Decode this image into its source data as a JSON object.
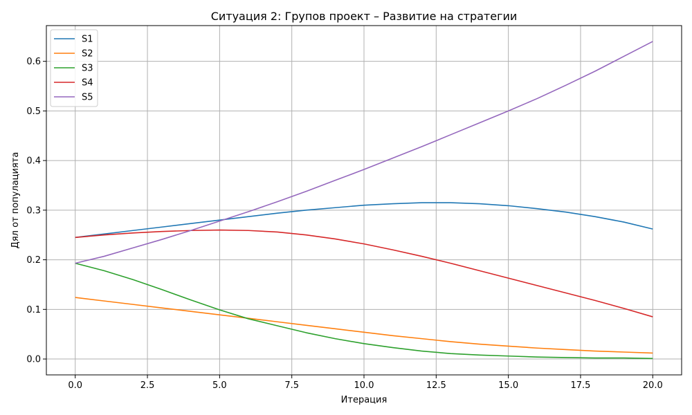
{
  "chart_data": {
    "type": "line",
    "title": "Ситуация 2: Групов проект – Развитие на стратегии",
    "xlabel": "Итерация",
    "ylabel": "Дял от популацията",
    "xlim": [
      -1,
      21
    ],
    "ylim": [
      -0.032,
      0.672
    ],
    "xticks": [
      0,
      2.5,
      5,
      7.5,
      10,
      12.5,
      15,
      17.5,
      20
    ],
    "xtick_labels": [
      "0.0",
      "2.5",
      "5.0",
      "7.5",
      "10.0",
      "12.5",
      "15.0",
      "17.5",
      "20.0"
    ],
    "yticks": [
      0,
      0.1,
      0.2,
      0.3,
      0.4,
      0.5,
      0.6
    ],
    "ytick_labels": [
      "0.0",
      "0.1",
      "0.2",
      "0.3",
      "0.4",
      "0.5",
      "0.6"
    ],
    "grid": true,
    "legend_position": "top-left",
    "x": [
      0,
      1,
      2,
      3,
      4,
      5,
      6,
      7,
      8,
      9,
      10,
      11,
      12,
      13,
      14,
      15,
      16,
      17,
      18,
      19,
      20
    ],
    "series": [
      {
        "name": "S1",
        "color": "#1f77b4",
        "values": [
          0.245,
          0.252,
          0.259,
          0.266,
          0.273,
          0.28,
          0.287,
          0.294,
          0.3,
          0.305,
          0.31,
          0.313,
          0.315,
          0.315,
          0.313,
          0.309,
          0.303,
          0.296,
          0.287,
          0.276,
          0.262
        ]
      },
      {
        "name": "S2",
        "color": "#ff7f0e",
        "values": [
          0.124,
          0.117,
          0.11,
          0.103,
          0.096,
          0.089,
          0.082,
          0.075,
          0.068,
          0.061,
          0.054,
          0.047,
          0.041,
          0.035,
          0.03,
          0.026,
          0.022,
          0.019,
          0.016,
          0.014,
          0.012
        ]
      },
      {
        "name": "S3",
        "color": "#2ca02c",
        "values": [
          0.193,
          0.178,
          0.16,
          0.14,
          0.119,
          0.099,
          0.081,
          0.067,
          0.053,
          0.041,
          0.031,
          0.023,
          0.016,
          0.011,
          0.008,
          0.006,
          0.004,
          0.003,
          0.002,
          0.002,
          0.001
        ]
      },
      {
        "name": "S4",
        "color": "#d62728",
        "values": [
          0.245,
          0.25,
          0.254,
          0.257,
          0.259,
          0.26,
          0.259,
          0.256,
          0.25,
          0.242,
          0.232,
          0.22,
          0.207,
          0.193,
          0.178,
          0.163,
          0.148,
          0.133,
          0.118,
          0.102,
          0.085
        ]
      },
      {
        "name": "S5",
        "color": "#9467bd",
        "values": [
          0.193,
          0.207,
          0.224,
          0.241,
          0.259,
          0.278,
          0.297,
          0.317,
          0.338,
          0.36,
          0.382,
          0.405,
          0.428,
          0.452,
          0.476,
          0.5,
          0.525,
          0.552,
          0.58,
          0.61,
          0.64
        ]
      }
    ]
  }
}
